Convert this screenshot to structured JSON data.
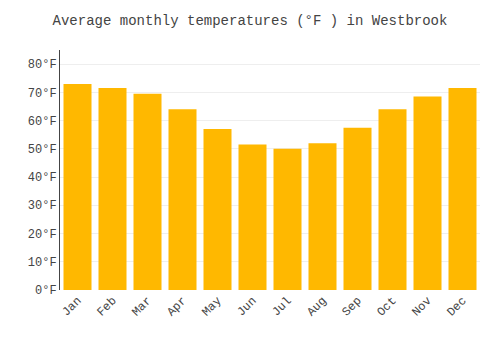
{
  "chart_data": {
    "type": "bar",
    "title": "Average monthly temperatures (°F ) in Westbrook",
    "categories": [
      "Jan",
      "Feb",
      "Mar",
      "Apr",
      "May",
      "Jun",
      "Jul",
      "Aug",
      "Sep",
      "Oct",
      "Nov",
      "Dec"
    ],
    "values": [
      73,
      71.5,
      69.5,
      64,
      57,
      51.5,
      50,
      52,
      57.5,
      64,
      68.5,
      71.5
    ],
    "color": "#FFB800",
    "ylim": [
      0,
      85
    ],
    "yticks": [
      {
        "value": 0,
        "label": "0°F"
      },
      {
        "value": 10,
        "label": "10°F"
      },
      {
        "value": 20,
        "label": "20°F"
      },
      {
        "value": 30,
        "label": "30°F"
      },
      {
        "value": 40,
        "label": "40°F"
      },
      {
        "value": 50,
        "label": "50°F"
      },
      {
        "value": 60,
        "label": "60°F"
      },
      {
        "value": 70,
        "label": "70°F"
      },
      {
        "value": 80,
        "label": "80°F"
      }
    ],
    "grid": true
  }
}
